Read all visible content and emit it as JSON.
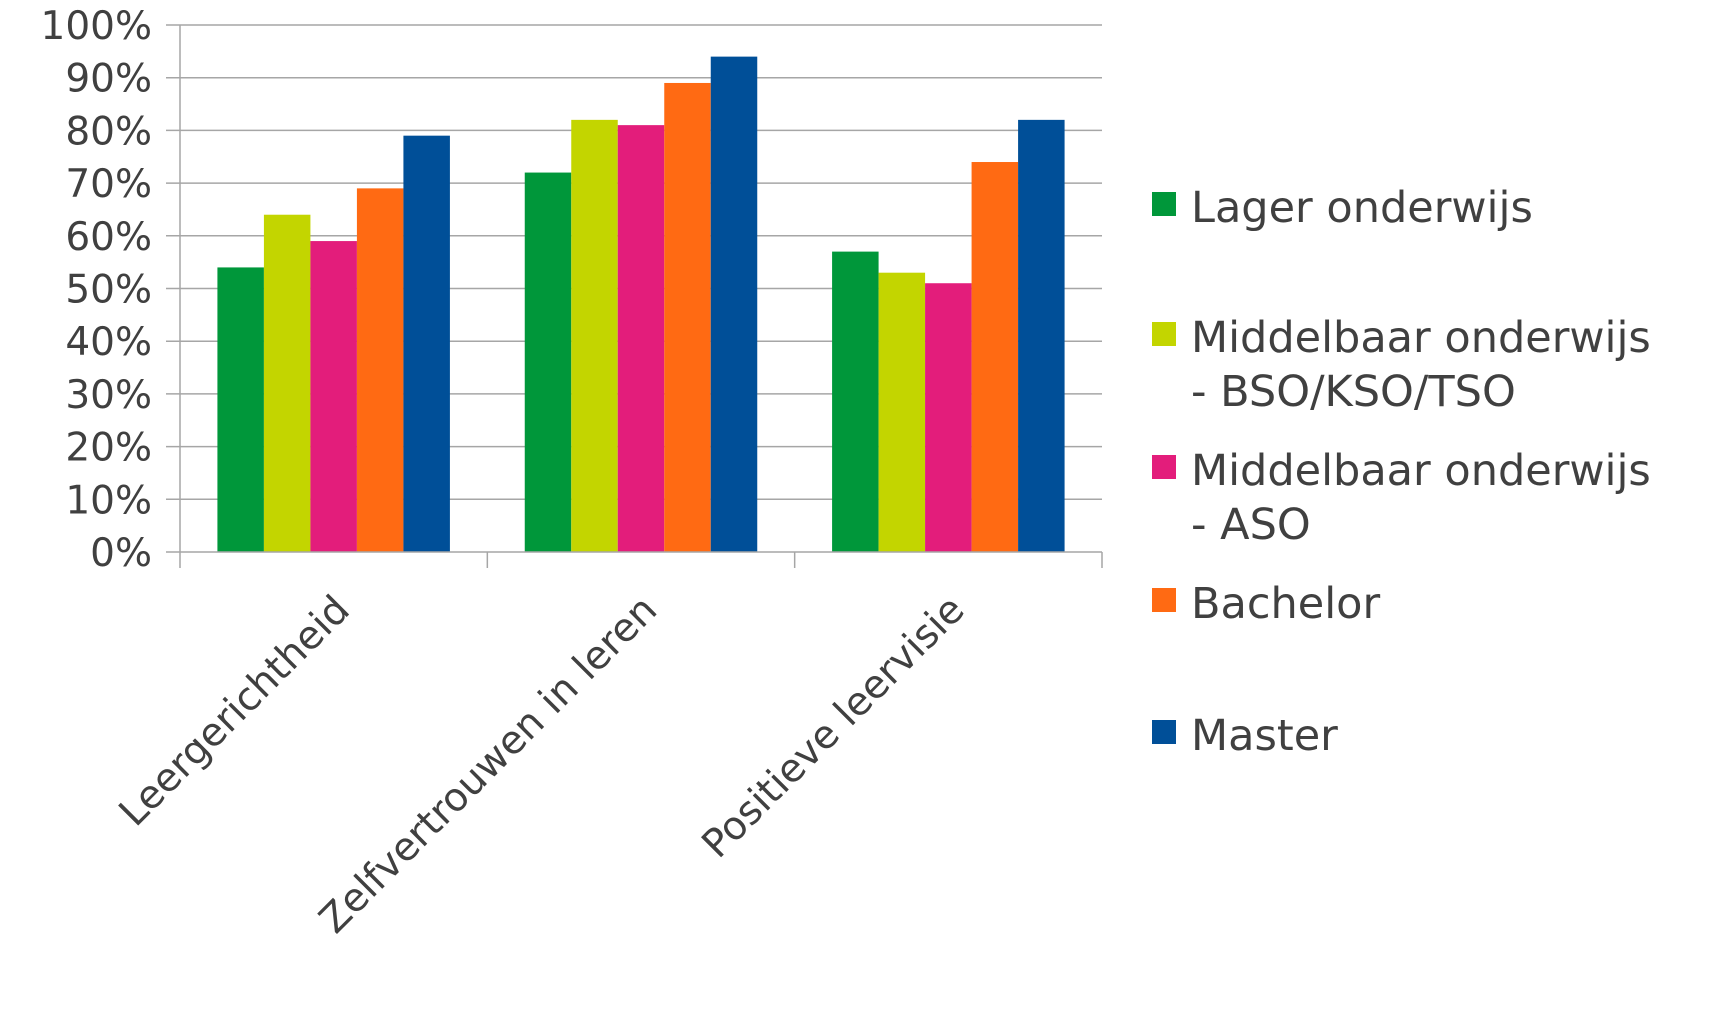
{
  "chart_data": {
    "type": "bar",
    "title": "",
    "xlabel": "",
    "ylabel": "",
    "ylim": [
      0,
      100
    ],
    "y_ticks": [
      "0%",
      "10%",
      "20%",
      "30%",
      "40%",
      "50%",
      "60%",
      "70%",
      "80%",
      "90%",
      "100%"
    ],
    "grid": true,
    "legend_position": "right",
    "categories": [
      "Leergerichtheid",
      "Zelfvertrouwen in leren",
      "Positieve leervisie"
    ],
    "series": [
      {
        "name": "Lager onderwijs",
        "color": "#00973a",
        "values": [
          54,
          72,
          57
        ],
        "legend_lines": [
          "Lager onderwijs"
        ]
      },
      {
        "name": "Middelbaar onderwijs - BSO/KSO/TSO",
        "color": "#c3d500",
        "values": [
          64,
          82,
          53
        ],
        "legend_lines": [
          "Middelbaar onderwijs",
          "- BSO/KSO/TSO"
        ]
      },
      {
        "name": "Middelbaar onderwijs - ASO",
        "color": "#e31d7b",
        "values": [
          59,
          81,
          51
        ],
        "legend_lines": [
          "Middelbaar onderwijs",
          "- ASO"
        ]
      },
      {
        "name": "Bachelor",
        "color": "#ff6a13",
        "values": [
          69,
          89,
          74
        ],
        "legend_lines": [
          "Bachelor"
        ]
      },
      {
        "name": "Master",
        "color": "#004f98",
        "values": [
          79,
          94,
          82
        ],
        "legend_lines": [
          "Master"
        ]
      }
    ]
  }
}
